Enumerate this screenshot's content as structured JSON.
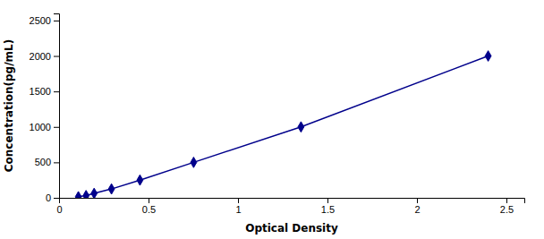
{
  "chart_data": {
    "type": "line",
    "x": [
      0.108,
      0.151,
      0.196,
      0.293,
      0.452,
      0.752,
      1.352,
      2.398
    ],
    "values": [
      15.6,
      31.2,
      62.5,
      125,
      250,
      500,
      1000,
      2000
    ],
    "color": "#00008B",
    "marker": "diamond",
    "xlabel": "Optical Density",
    "ylabel": "Concentration(pg/mL)",
    "xlim": [
      0.0,
      2.6
    ],
    "ylim": [
      0,
      2600
    ],
    "xticks": [
      0,
      0.5,
      1,
      1.5,
      2,
      2.5
    ],
    "yticks": [
      0,
      500,
      1000,
      1500,
      2000,
      2500
    ],
    "grid": false
  }
}
